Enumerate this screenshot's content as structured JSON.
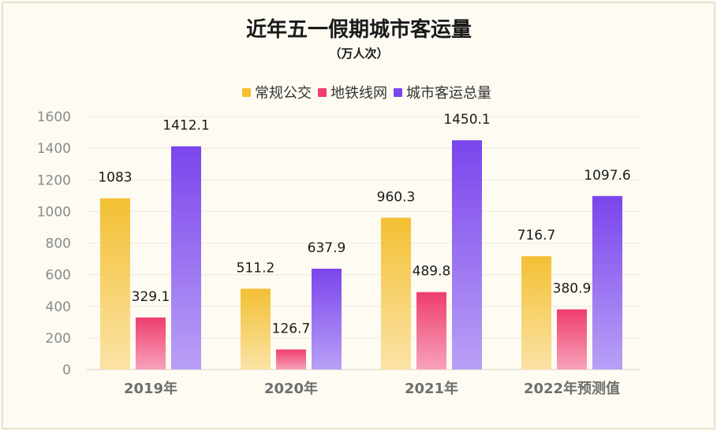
{
  "chart_data": {
    "type": "bar",
    "title": "近年五一假期城市客运量",
    "subtitle": "（万人次）",
    "categories": [
      "2019年",
      "2020年",
      "2021年",
      "2022年预测值"
    ],
    "series": [
      {
        "name": "常规公交",
        "values": [
          1083,
          511.2,
          960.3,
          716.7
        ],
        "labels": [
          "1083",
          "511.2",
          "960.3",
          "716.7"
        ],
        "color_top": "#f3c033",
        "color_bottom": "#fbe3a6"
      },
      {
        "name": "地铁线网",
        "values": [
          329.1,
          126.7,
          489.8,
          380.9
        ],
        "labels": [
          "329.1",
          "126.7",
          "489.8",
          "380.9"
        ],
        "color_top": "#ee3d6e",
        "color_bottom": "#f7a3bb"
      },
      {
        "name": "城市客运总量",
        "values": [
          1412.1,
          637.9,
          1450.1,
          1097.6
        ],
        "labels": [
          "1412.1",
          "637.9",
          "1450.1",
          "1097.6"
        ],
        "color_top": "#7a45ec",
        "color_bottom": "#b9a0f6"
      }
    ],
    "ylim": [
      0,
      1600
    ],
    "yticks": [
      0,
      200,
      400,
      600,
      800,
      1000,
      1200,
      1400,
      1600
    ],
    "xlabel": "",
    "ylabel": "",
    "grid": true,
    "legend_position": "top-center"
  },
  "colors": {
    "background": "#fdfbf2",
    "border": "#e6e2cc",
    "grid": "#ebe9e0",
    "axis_text": "#8a8a8a",
    "category_text": "#6e6e6e",
    "title_text": "#1a1a1a"
  }
}
